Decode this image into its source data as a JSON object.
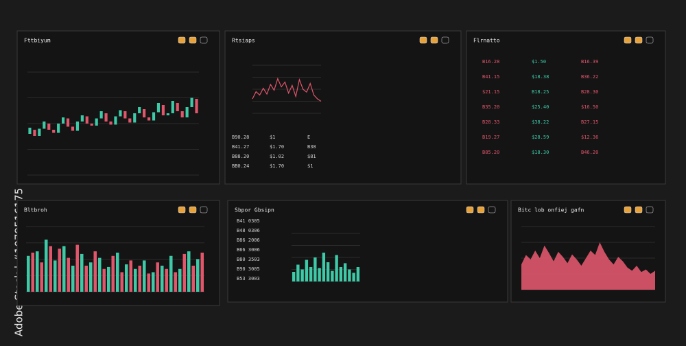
{
  "watermark": "Adobe Stock | #1079516175",
  "panels": [
    {
      "title": "Fttbiyum",
      "chart": {
        "type": "candlestick",
        "up_color": "#3ec9a7",
        "down_color": "#e0566b",
        "candles": [
          [
            40,
            46
          ],
          [
            44,
            38
          ],
          [
            38,
            45
          ],
          [
            45,
            52
          ],
          [
            50,
            44
          ],
          [
            44,
            41
          ],
          [
            41,
            50
          ],
          [
            50,
            56
          ],
          [
            55,
            47
          ],
          [
            47,
            43
          ],
          [
            43,
            52
          ],
          [
            52,
            58
          ],
          [
            57,
            50
          ],
          [
            50,
            48
          ],
          [
            48,
            55
          ],
          [
            55,
            62
          ],
          [
            60,
            52
          ],
          [
            52,
            49
          ],
          [
            49,
            57
          ],
          [
            57,
            63
          ],
          [
            62,
            55
          ],
          [
            55,
            51
          ],
          [
            51,
            60
          ],
          [
            60,
            66
          ],
          [
            64,
            56
          ],
          [
            56,
            53
          ],
          [
            53,
            61
          ],
          [
            61,
            70
          ],
          [
            68,
            58
          ],
          [
            58,
            60
          ],
          [
            60,
            72
          ],
          [
            70,
            62
          ],
          [
            62,
            56
          ],
          [
            56,
            66
          ],
          [
            66,
            75
          ],
          [
            74,
            60
          ]
        ]
      },
      "rows": []
    },
    {
      "title": "Rtsiaps",
      "chart": {
        "type": "line",
        "color": "#e0566b",
        "values": [
          30,
          45,
          38,
          52,
          40,
          60,
          48,
          72,
          55,
          65,
          42,
          58,
          35,
          70,
          50,
          44,
          62,
          38,
          30,
          25
        ]
      },
      "rows": [
        [
          "B90.28",
          "$1",
          "E"
        ],
        [
          "B41.27",
          "$1.70",
          "B38"
        ],
        [
          "B88.20",
          "$1.02",
          "$81"
        ],
        [
          "BB0.24",
          "$1.70",
          "$1"
        ]
      ]
    },
    {
      "title": "Flrnatto",
      "rows": [
        [
          "B16.28",
          "$1.50",
          "B16.39"
        ],
        [
          "B41.15",
          "$18.38",
          "B36.22"
        ],
        [
          "$21.15",
          "B18.25",
          "B28.30"
        ],
        [
          "B35.20",
          "$25.40",
          "$16.50"
        ],
        [
          "B28.33",
          "$38.22",
          "B27.15"
        ],
        [
          "B19.27",
          "$28.59",
          "$12.36"
        ],
        [
          "B85.20",
          "$18.30",
          "B46.20"
        ]
      ]
    },
    {
      "title": "Bltbroh",
      "chart": {
        "type": "bar",
        "series": [
          {
            "color": "#3ec9a7",
            "values": [
              55,
              62,
              80,
              48,
              70,
              40,
              58,
              45,
              52,
              38,
              60,
              42,
              35,
              48,
              30,
              40,
              55,
              35,
              62,
              50
            ]
          },
          {
            "color": "#e0566b",
            "values": [
              60,
              45,
              70,
              66,
              52,
              72,
              40,
              62,
              35,
              55,
              30,
              48,
              40,
              28,
              45,
              35,
              30,
              58,
              40,
              60
            ]
          }
        ]
      }
    },
    {
      "title": "Sbpor Gbsipn",
      "chart": {
        "type": "bar",
        "series": [
          {
            "color": "#3ec9a7",
            "values": [
              20,
              35,
              25,
              45,
              30,
              50,
              28,
              60,
              40,
              22,
              55,
              30,
              38,
              25,
              18,
              30
            ]
          }
        ]
      },
      "rows": [
        [
          "B41 0305"
        ],
        [
          "B48 0306"
        ],
        [
          "B86 2006"
        ],
        [
          "B66 3006"
        ],
        [
          "B80 3503"
        ],
        [
          "B90 3005"
        ],
        [
          "B53 3003"
        ]
      ]
    },
    {
      "title": "Bitc lob onfiej gafn",
      "chart": {
        "type": "area",
        "color": "#e0566b",
        "values": [
          40,
          55,
          48,
          62,
          50,
          70,
          58,
          45,
          60,
          52,
          42,
          56,
          48,
          38,
          50,
          62,
          55,
          75,
          60,
          48,
          40,
          52,
          45,
          35,
          30,
          38,
          28,
          32,
          25,
          30
        ]
      }
    }
  ]
}
